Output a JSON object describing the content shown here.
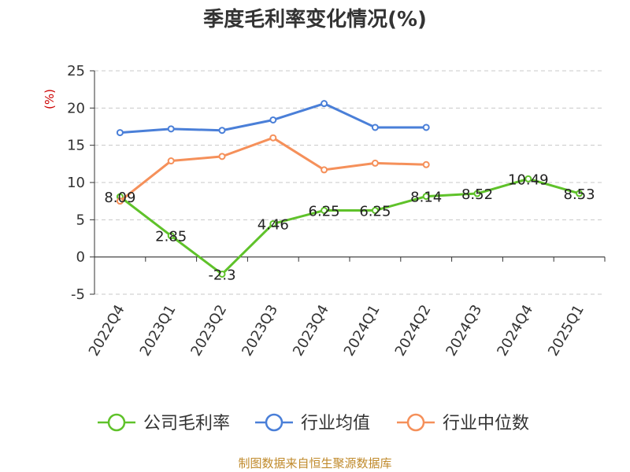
{
  "title": "季度毛利率变化情况(%)",
  "source": "制图数据来自恒生聚源数据库",
  "chart_data": {
    "type": "line",
    "title": "季度毛利率变化情况(%)",
    "ylabel": "(%)",
    "xlabel": "",
    "categories": [
      "2022Q4",
      "2023Q1",
      "2023Q2",
      "2023Q3",
      "2023Q4",
      "2024Q1",
      "2024Q2",
      "2024Q3",
      "2024Q4",
      "2025Q1"
    ],
    "yticks": [
      -5,
      0,
      5,
      10,
      15,
      20,
      25
    ],
    "ylim": [
      -5,
      25
    ],
    "grid": true,
    "legend_position": "bottom",
    "series": [
      {
        "name": "公司毛利率",
        "color": "#5fc22a",
        "values": [
          8.09,
          2.85,
          -2.3,
          4.46,
          6.25,
          6.25,
          8.14,
          8.52,
          10.49,
          8.53
        ],
        "labels": [
          "8.09",
          "2.85",
          "-2.3",
          "4.46",
          "6.25",
          "6.25",
          "8.14",
          "8.52",
          "10.49",
          "8.53"
        ]
      },
      {
        "name": "行业均值",
        "color": "#4a7fd8",
        "values": [
          16.7,
          17.2,
          17.0,
          18.4,
          20.6,
          17.4,
          17.4,
          null,
          null,
          null
        ]
      },
      {
        "name": "行业中位数",
        "color": "#f5905a",
        "values": [
          7.5,
          12.9,
          13.5,
          16.0,
          11.7,
          12.6,
          12.4,
          null,
          null,
          null
        ]
      }
    ]
  }
}
